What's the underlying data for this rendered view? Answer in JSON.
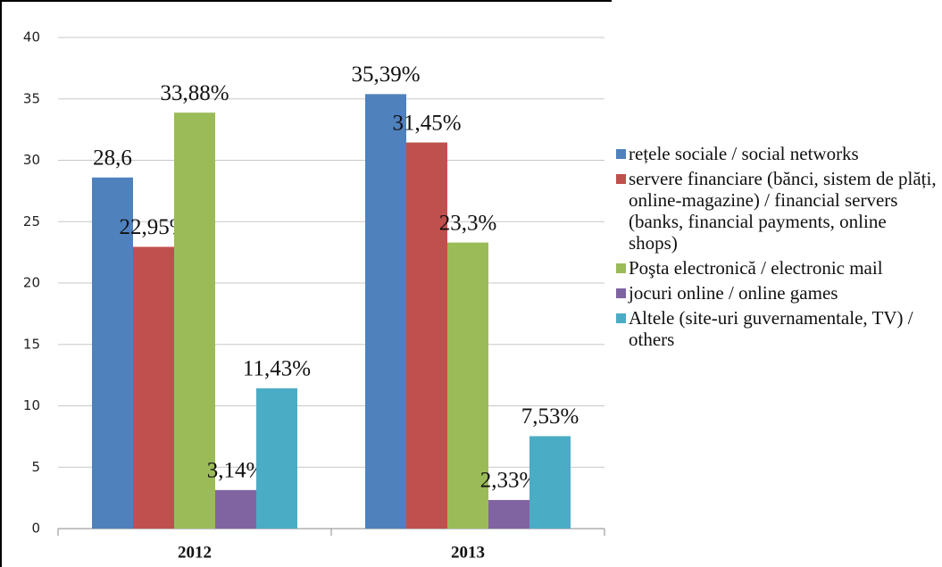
{
  "chart_data": {
    "type": "bar",
    "categories": [
      "2012",
      "2013"
    ],
    "series": [
      {
        "name": "rețele sociale / social networks",
        "color": "#4f81bd",
        "values": [
          28.6,
          35.39
        ],
        "value_labels": [
          "28,6",
          "35,39%"
        ]
      },
      {
        "name": "servere financiare (bănci, sistem de plăți, online-magazine) / financial servers (banks, financial payments, online shops)",
        "color": "#c0504d",
        "values": [
          22.95,
          31.45
        ],
        "value_labels": [
          "22,95%",
          "31,45%"
        ]
      },
      {
        "name": "Poşta electronică / electronic mail",
        "color": "#9bbb59",
        "values": [
          33.88,
          23.3
        ],
        "value_labels": [
          "33,88%",
          "23,3%"
        ]
      },
      {
        "name": "jocuri online / online games",
        "color": "#8064a2",
        "values": [
          3.14,
          2.33
        ],
        "value_labels": [
          "3,14%",
          "2,33%"
        ]
      },
      {
        "name": "Altele (site-uri guvernamentale, TV) / others",
        "color": "#4bacc6",
        "values": [
          11.43,
          7.53
        ],
        "value_labels": [
          "11,43%",
          "7,53%"
        ]
      }
    ],
    "ylim": [
      0,
      40
    ],
    "yticks": [
      0,
      5,
      10,
      15,
      20,
      25,
      30,
      35,
      40
    ],
    "grid": true,
    "legend": "right"
  }
}
